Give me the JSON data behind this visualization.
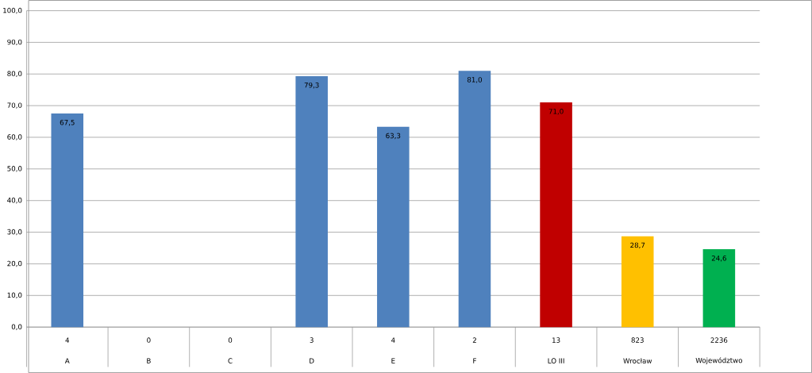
{
  "chart_data": {
    "type": "bar",
    "categories": [
      "A",
      "B",
      "C",
      "D",
      "E",
      "F",
      "LO III",
      "Wrocław",
      "Województwo"
    ],
    "values": [
      67.5,
      null,
      null,
      79.3,
      63.3,
      81.0,
      71.0,
      28.7,
      24.6
    ],
    "value_labels": [
      "67,5",
      null,
      null,
      "79,3",
      "63,3",
      "81,0",
      "71,0",
      "28,7",
      "24,6"
    ],
    "colors": [
      "#4f81bd",
      "#4f81bd",
      "#4f81bd",
      "#4f81bd",
      "#4f81bd",
      "#4f81bd",
      "#c00000",
      "#ffc000",
      "#00b050"
    ],
    "ylim": [
      0,
      100
    ],
    "yticks": [
      {
        "value": 0,
        "label": "0,0"
      },
      {
        "value": 10,
        "label": "10,0"
      },
      {
        "value": 20,
        "label": "20,0"
      },
      {
        "value": 30,
        "label": "30,0"
      },
      {
        "value": 40,
        "label": "40,0"
      },
      {
        "value": 50,
        "label": "50,0"
      },
      {
        "value": 60,
        "label": "60,0"
      },
      {
        "value": 70,
        "label": "70,0"
      },
      {
        "value": 80,
        "label": "80,0"
      },
      {
        "value": 90,
        "label": "90,0"
      },
      {
        "value": 100,
        "label": "100,0"
      }
    ],
    "grid": "y",
    "annotations": [
      "4",
      "0",
      "0",
      "3",
      "4",
      "2",
      "13",
      "823",
      "2236"
    ]
  }
}
